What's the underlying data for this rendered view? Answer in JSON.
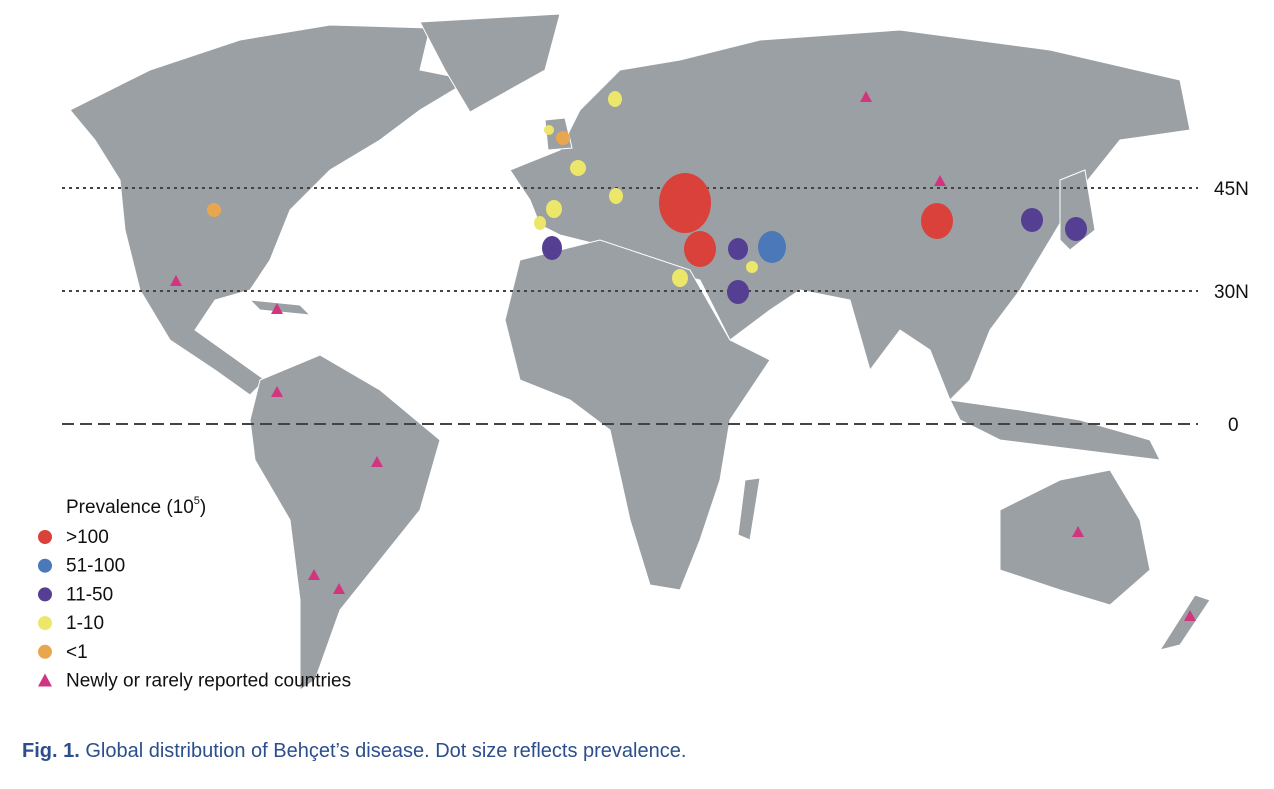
{
  "latitude_lines": [
    {
      "label": "45N"
    },
    {
      "label": "30N"
    },
    {
      "label": "0"
    }
  ],
  "legend": {
    "title": "Prevalence (10",
    "title_superscript": "5",
    "title_end": ")",
    "items": [
      {
        "label": ">100",
        "color": "#d9413a",
        "shape": "circle"
      },
      {
        "label": "51-100",
        "color": "#4a78b8",
        "shape": "circle"
      },
      {
        "label": "11-50",
        "color": "#553f93",
        "shape": "circle"
      },
      {
        "label": "1-10",
        "color": "#ece66a",
        "shape": "circle"
      },
      {
        "label": "<1",
        "color": "#e8a74e",
        "shape": "circle"
      },
      {
        "label": "Newly or rarely reported countries",
        "color": "#d2357f",
        "shape": "triangle"
      }
    ]
  },
  "caption": {
    "label": "Fig. 1.",
    "text": " Global distribution of Behçet’s disease. Dot size reflects prevalence."
  }
}
